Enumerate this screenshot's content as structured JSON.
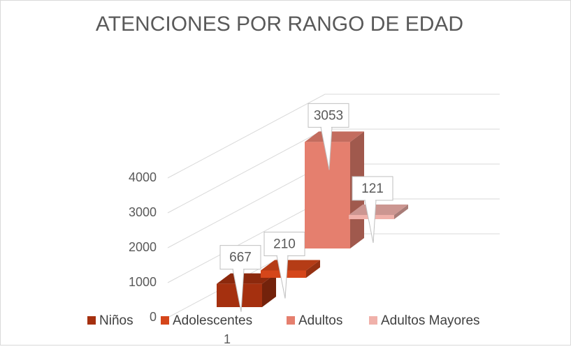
{
  "chart_data": {
    "type": "bar3d",
    "title": "ATENCIONES POR RANGO DE EDAD",
    "categories": [
      "1"
    ],
    "series": [
      {
        "name": "Niños",
        "color": "#a5300f",
        "values": [
          667
        ]
      },
      {
        "name": "Adolescentes",
        "color": "#d5461a",
        "values": [
          210
        ]
      },
      {
        "name": "Adultos",
        "color": "#e57f6e",
        "values": [
          3053
        ]
      },
      {
        "name": "Adultos Mayores",
        "color": "#f0b1aa",
        "values": [
          121
        ]
      }
    ],
    "ylim": [
      0,
      4000
    ],
    "yticks": [
      0,
      1000,
      2000,
      3000,
      4000
    ],
    "grid": true,
    "legend": "bottom"
  }
}
